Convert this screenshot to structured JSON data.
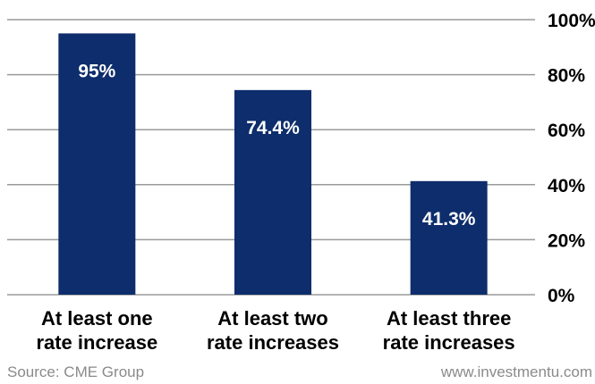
{
  "chart_data": {
    "type": "bar",
    "categories": [
      [
        "At least one",
        "rate increase"
      ],
      [
        "At least two",
        "rate increases"
      ],
      [
        "At least three",
        "rate increases"
      ]
    ],
    "values": [
      95,
      74.4,
      41.3
    ],
    "data_labels": [
      "95%",
      "74.4%",
      "41.3%"
    ],
    "ylim": [
      0,
      100
    ],
    "yticks": [
      0,
      20,
      40,
      60,
      80,
      100
    ],
    "ytick_labels": [
      "0%",
      "20%",
      "40%",
      "60%",
      "80%",
      "100%"
    ],
    "y_axis_position": "right",
    "grid": true,
    "legend": "none",
    "bar_color": "#0d2d6c",
    "grid_color": "#9a9a9a"
  },
  "footer": {
    "source": "Source: CME Group",
    "site": "www.investmentu.com"
  }
}
